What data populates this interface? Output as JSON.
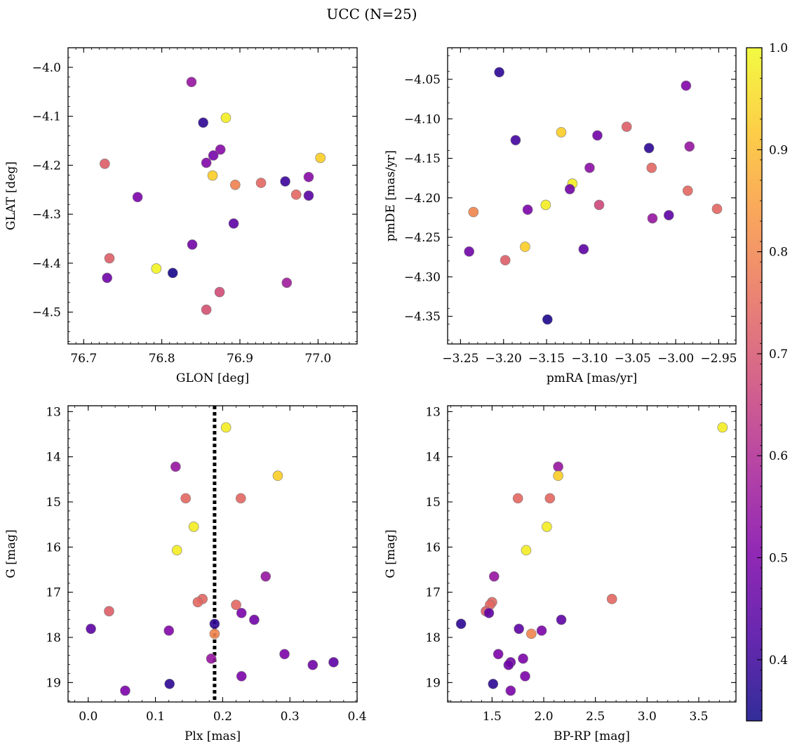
{
  "chart_data": {
    "type": "scatter",
    "title": "UCC (N=25)",
    "colorbar": {
      "colormap": "plasma",
      "range": [
        0.34,
        1.0
      ],
      "ticks": [
        "0.4",
        "0.5",
        "0.6",
        "0.7",
        "0.8",
        "0.9",
        "1.0"
      ]
    },
    "panels": [
      {
        "id": "glon-glat",
        "xlabel": "GLON [deg]",
        "ylabel": "GLAT [deg]",
        "xlim": [
          76.68,
          77.05
        ],
        "ylim": [
          -4.565,
          -3.96
        ],
        "xticks": [
          "76.7",
          "76.8",
          "76.9",
          "77.0"
        ],
        "yticks": [
          "−4.0",
          "−4.1",
          "−4.2",
          "−4.3",
          "−4.4",
          "−4.5"
        ],
        "points": [
          {
            "x": 76.838,
            "y": -4.03,
            "c": 0.55
          },
          {
            "x": 76.882,
            "y": -4.103,
            "c": 0.98
          },
          {
            "x": 76.853,
            "y": -4.113,
            "c": 0.38
          },
          {
            "x": 76.875,
            "y": -4.168,
            "c": 0.52
          },
          {
            "x": 76.866,
            "y": -4.18,
            "c": 0.49
          },
          {
            "x": 77.003,
            "y": -4.185,
            "c": 0.93
          },
          {
            "x": 76.727,
            "y": -4.197,
            "c": 0.72
          },
          {
            "x": 76.857,
            "y": -4.195,
            "c": 0.51
          },
          {
            "x": 76.865,
            "y": -4.221,
            "c": 0.93
          },
          {
            "x": 76.988,
            "y": -4.224,
            "c": 0.52
          },
          {
            "x": 76.958,
            "y": -4.233,
            "c": 0.4
          },
          {
            "x": 76.927,
            "y": -4.236,
            "c": 0.74
          },
          {
            "x": 76.894,
            "y": -4.24,
            "c": 0.79
          },
          {
            "x": 76.972,
            "y": -4.26,
            "c": 0.74
          },
          {
            "x": 76.988,
            "y": -4.262,
            "c": 0.44
          },
          {
            "x": 76.769,
            "y": -4.265,
            "c": 0.5
          },
          {
            "x": 76.892,
            "y": -4.319,
            "c": 0.45
          },
          {
            "x": 76.839,
            "y": -4.362,
            "c": 0.48
          },
          {
            "x": 76.733,
            "y": -4.39,
            "c": 0.72
          },
          {
            "x": 76.793,
            "y": -4.411,
            "c": 0.99
          },
          {
            "x": 76.814,
            "y": -4.42,
            "c": 0.35
          },
          {
            "x": 76.73,
            "y": -4.43,
            "c": 0.48
          },
          {
            "x": 76.96,
            "y": -4.44,
            "c": 0.57
          },
          {
            "x": 76.874,
            "y": -4.459,
            "c": 0.68
          },
          {
            "x": 76.857,
            "y": -4.495,
            "c": 0.69
          }
        ]
      },
      {
        "id": "pmra-pmde",
        "xlabel": "pmRA [mas/yr]",
        "ylabel": "pmDE [mas/yr]",
        "xlim": [
          -3.265,
          -2.93
        ],
        "ylim": [
          -4.385,
          -4.01
        ],
        "xticks": [
          "−3.25",
          "−3.20",
          "−3.15",
          "−3.10",
          "−3.05",
          "−3.00",
          "−2.95"
        ],
        "yticks": [
          "−4.05",
          "−4.10",
          "−4.15",
          "−4.20",
          "−4.25",
          "−4.30",
          "−4.35"
        ],
        "points": [
          {
            "x": -3.205,
            "y": -4.041,
            "c": 0.38
          },
          {
            "x": -2.988,
            "y": -4.058,
            "c": 0.51
          },
          {
            "x": -3.057,
            "y": -4.11,
            "c": 0.72
          },
          {
            "x": -3.133,
            "y": -4.117,
            "c": 0.93
          },
          {
            "x": -3.091,
            "y": -4.121,
            "c": 0.48
          },
          {
            "x": -3.186,
            "y": -4.127,
            "c": 0.41
          },
          {
            "x": -2.984,
            "y": -4.135,
            "c": 0.55
          },
          {
            "x": -3.031,
            "y": -4.137,
            "c": 0.38
          },
          {
            "x": -3.028,
            "y": -4.162,
            "c": 0.74
          },
          {
            "x": -3.1,
            "y": -4.162,
            "c": 0.53
          },
          {
            "x": -3.12,
            "y": -4.182,
            "c": 0.98
          },
          {
            "x": -3.123,
            "y": -4.189,
            "c": 0.48
          },
          {
            "x": -2.986,
            "y": -4.191,
            "c": 0.74
          },
          {
            "x": -3.089,
            "y": -4.209,
            "c": 0.67
          },
          {
            "x": -3.151,
            "y": -4.209,
            "c": 0.98
          },
          {
            "x": -3.172,
            "y": -4.215,
            "c": 0.5
          },
          {
            "x": -2.952,
            "y": -4.214,
            "c": 0.74
          },
          {
            "x": -3.235,
            "y": -4.218,
            "c": 0.8
          },
          {
            "x": -3.008,
            "y": -4.222,
            "c": 0.45
          },
          {
            "x": -3.027,
            "y": -4.226,
            "c": 0.55
          },
          {
            "x": -3.175,
            "y": -4.262,
            "c": 0.93
          },
          {
            "x": -3.107,
            "y": -4.265,
            "c": 0.45
          },
          {
            "x": -3.24,
            "y": -4.268,
            "c": 0.48
          },
          {
            "x": -3.198,
            "y": -4.279,
            "c": 0.72
          },
          {
            "x": -3.149,
            "y": -4.354,
            "c": 0.36
          }
        ]
      },
      {
        "id": "plx-g",
        "xlabel": "Plx [mas]",
        "ylabel": "G [mag]",
        "xlim": [
          -0.03,
          0.4
        ],
        "ylim": [
          19.43,
          12.87
        ],
        "y_inverted": true,
        "vline_x": 0.188,
        "xticks": [
          "0.0",
          "0.1",
          "0.2",
          "0.3",
          "0.4"
        ],
        "yticks": [
          "13",
          "14",
          "15",
          "16",
          "17",
          "18",
          "19"
        ],
        "points": [
          {
            "x": 0.205,
            "y": 13.35,
            "c": 0.98
          },
          {
            "x": 0.13,
            "y": 14.22,
            "c": 0.55
          },
          {
            "x": 0.282,
            "y": 14.42,
            "c": 0.93
          },
          {
            "x": 0.145,
            "y": 14.92,
            "c": 0.74
          },
          {
            "x": 0.227,
            "y": 14.92,
            "c": 0.74
          },
          {
            "x": 0.157,
            "y": 15.55,
            "c": 0.98
          },
          {
            "x": 0.132,
            "y": 16.07,
            "c": 0.98
          },
          {
            "x": 0.264,
            "y": 16.65,
            "c": 0.55
          },
          {
            "x": 0.17,
            "y": 17.15,
            "c": 0.74
          },
          {
            "x": 0.163,
            "y": 17.22,
            "c": 0.74
          },
          {
            "x": 0.22,
            "y": 17.28,
            "c": 0.74
          },
          {
            "x": 0.031,
            "y": 17.42,
            "c": 0.72
          },
          {
            "x": 0.228,
            "y": 17.46,
            "c": 0.5
          },
          {
            "x": 0.247,
            "y": 17.61,
            "c": 0.48
          },
          {
            "x": 0.188,
            "y": 17.7,
            "c": 0.38
          },
          {
            "x": 0.004,
            "y": 17.81,
            "c": 0.45
          },
          {
            "x": 0.12,
            "y": 17.85,
            "c": 0.51
          },
          {
            "x": 0.188,
            "y": 17.92,
            "c": 0.8
          },
          {
            "x": 0.292,
            "y": 18.37,
            "c": 0.5
          },
          {
            "x": 0.183,
            "y": 18.47,
            "c": 0.55
          },
          {
            "x": 0.365,
            "y": 18.55,
            "c": 0.45
          },
          {
            "x": 0.334,
            "y": 18.61,
            "c": 0.48
          },
          {
            "x": 0.228,
            "y": 18.86,
            "c": 0.5
          },
          {
            "x": 0.121,
            "y": 19.03,
            "c": 0.38
          },
          {
            "x": 0.055,
            "y": 19.18,
            "c": 0.5
          }
        ]
      },
      {
        "id": "bprp-g",
        "xlabel": "BP-RP [mag]",
        "ylabel": "G [mag]",
        "xlim": [
          1.07,
          3.86
        ],
        "ylim": [
          19.43,
          12.87
        ],
        "y_inverted": true,
        "xticks": [
          "1.5",
          "2.0",
          "2.5",
          "3.0",
          "3.5"
        ],
        "yticks": [
          "13",
          "14",
          "15",
          "16",
          "17",
          "18",
          "19"
        ],
        "points": [
          {
            "x": 3.73,
            "y": 13.35,
            "c": 0.98
          },
          {
            "x": 2.14,
            "y": 14.22,
            "c": 0.55
          },
          {
            "x": 2.14,
            "y": 14.42,
            "c": 0.93
          },
          {
            "x": 1.75,
            "y": 14.92,
            "c": 0.74
          },
          {
            "x": 2.06,
            "y": 14.92,
            "c": 0.74
          },
          {
            "x": 2.03,
            "y": 15.55,
            "c": 0.98
          },
          {
            "x": 1.83,
            "y": 16.07,
            "c": 0.98
          },
          {
            "x": 1.52,
            "y": 16.65,
            "c": 0.55
          },
          {
            "x": 2.66,
            "y": 17.15,
            "c": 0.74
          },
          {
            "x": 1.5,
            "y": 17.22,
            "c": 0.74
          },
          {
            "x": 1.48,
            "y": 17.28,
            "c": 0.74
          },
          {
            "x": 1.44,
            "y": 17.42,
            "c": 0.72
          },
          {
            "x": 1.47,
            "y": 17.46,
            "c": 0.45
          },
          {
            "x": 2.17,
            "y": 17.61,
            "c": 0.45
          },
          {
            "x": 1.2,
            "y": 17.7,
            "c": 0.38
          },
          {
            "x": 1.76,
            "y": 17.81,
            "c": 0.45
          },
          {
            "x": 1.98,
            "y": 17.85,
            "c": 0.5
          },
          {
            "x": 1.88,
            "y": 17.92,
            "c": 0.8
          },
          {
            "x": 1.56,
            "y": 18.37,
            "c": 0.5
          },
          {
            "x": 1.8,
            "y": 18.47,
            "c": 0.5
          },
          {
            "x": 1.68,
            "y": 18.55,
            "c": 0.48
          },
          {
            "x": 1.66,
            "y": 18.61,
            "c": 0.48
          },
          {
            "x": 1.82,
            "y": 18.86,
            "c": 0.5
          },
          {
            "x": 1.51,
            "y": 19.03,
            "c": 0.38
          },
          {
            "x": 1.68,
            "y": 19.18,
            "c": 0.5
          }
        ]
      }
    ]
  }
}
